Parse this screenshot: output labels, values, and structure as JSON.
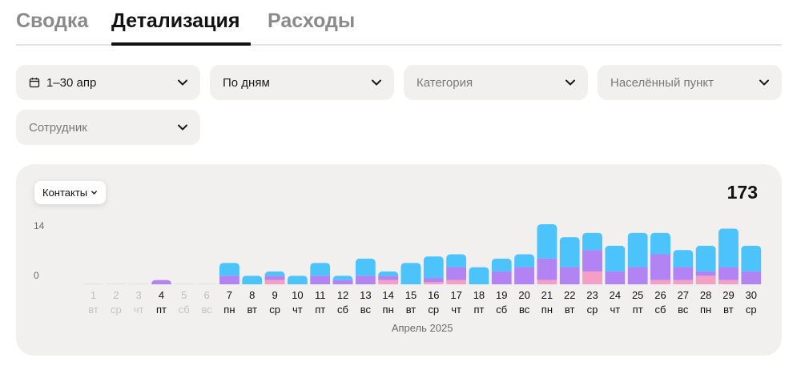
{
  "tabs": [
    {
      "label": "Сводка"
    },
    {
      "label": "Детализация"
    },
    {
      "label": "Расходы"
    }
  ],
  "filters": {
    "date": {
      "label": "1–30 апр",
      "icon": "calendar-icon"
    },
    "grouping": {
      "label": "По дням"
    },
    "category": {
      "placeholder": "Категория"
    },
    "locality": {
      "placeholder": "Населённый пункт"
    },
    "employee": {
      "placeholder": "Сотрудник"
    }
  },
  "card": {
    "metric_selector": "Контакты",
    "total": "173"
  },
  "colors": {
    "blue": "#4cc4fb",
    "purple": "#b283f3",
    "pink": "#f59fc5",
    "card_bg": "#f1f0ef"
  },
  "chart_data": {
    "type": "bar",
    "stacked": true,
    "ylim": [
      0,
      14
    ],
    "y_ticks": [
      "0",
      "14"
    ],
    "xlabel": "Апрель 2025",
    "categories": [
      "1",
      "2",
      "3",
      "4",
      "5",
      "6",
      "7",
      "8",
      "9",
      "10",
      "11",
      "12",
      "13",
      "14",
      "15",
      "16",
      "17",
      "18",
      "19",
      "20",
      "21",
      "22",
      "23",
      "24",
      "25",
      "26",
      "27",
      "28",
      "29",
      "30"
    ],
    "weekdays": [
      "вт",
      "ср",
      "чт",
      "пт",
      "сб",
      "вс",
      "пн",
      "вт",
      "ср",
      "чт",
      "пт",
      "сб",
      "вс",
      "пн",
      "вт",
      "ср",
      "чт",
      "пт",
      "сб",
      "вс",
      "пн",
      "вт",
      "ср",
      "чт",
      "пт",
      "сб",
      "вс",
      "пн",
      "вт",
      "ср"
    ],
    "active": [
      false,
      false,
      false,
      true,
      false,
      false,
      true,
      true,
      true,
      true,
      true,
      true,
      true,
      true,
      true,
      true,
      true,
      true,
      true,
      true,
      true,
      true,
      true,
      true,
      true,
      true,
      true,
      true,
      true,
      true
    ],
    "series": [
      {
        "color": "#f59fc5",
        "values": [
          0,
          0,
          0,
          0,
          0,
          0,
          0,
          0,
          1,
          0,
          0,
          0,
          0,
          1,
          0,
          0.5,
          1,
          0,
          0,
          0,
          1,
          0,
          3,
          0,
          0,
          1,
          1,
          2,
          1,
          0
        ]
      },
      {
        "color": "#b283f3",
        "values": [
          0,
          0,
          0,
          1,
          0,
          0,
          2,
          0,
          1,
          0,
          2,
          1,
          2,
          1,
          0,
          1,
          3,
          0,
          3,
          4,
          5,
          4,
          5,
          3,
          4,
          6,
          3,
          1,
          3,
          3
        ]
      },
      {
        "color": "#4cc4fb",
        "values": [
          0,
          0,
          0,
          0,
          0,
          0,
          3,
          2,
          1,
          2,
          3,
          1,
          4,
          1,
          5,
          5,
          3,
          4,
          3,
          3,
          8,
          7,
          4,
          6,
          8,
          5,
          4,
          6,
          9,
          6
        ]
      }
    ]
  }
}
